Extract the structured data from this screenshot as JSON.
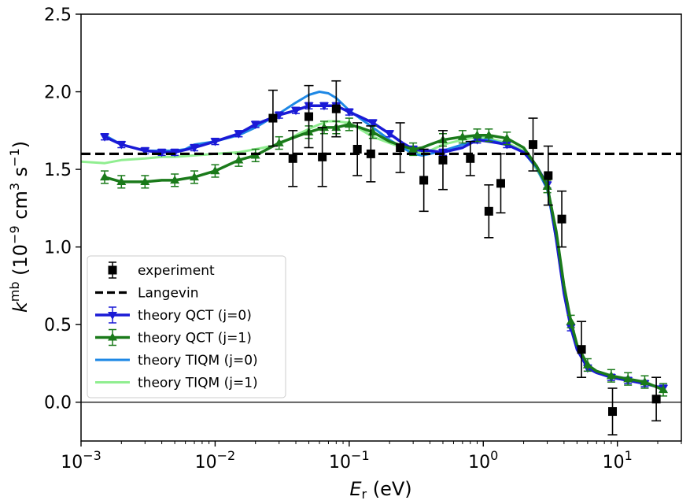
{
  "chart_data": {
    "type": "line",
    "title": "",
    "xscale": "log",
    "xlim": [
      0.001,
      30
    ],
    "ylim": [
      -0.25,
      2.5
    ],
    "xlabel": {
      "main": "E",
      "sub": "r",
      "rest": " (eV)"
    },
    "ylabel": {
      "main": "k",
      "sup": "mb",
      "rest1": " (10",
      "exp1": "−9",
      "rest2": " cm",
      "exp2": "3",
      "rest3": " s",
      "exp3": "−1",
      "rest4": ")"
    },
    "x_ticks": [
      {
        "value": 0.001,
        "base": "10",
        "exp": "−3"
      },
      {
        "value": 0.01,
        "base": "10",
        "exp": "−2"
      },
      {
        "value": 0.1,
        "base": "10",
        "exp": "−1"
      },
      {
        "value": 1,
        "base": "10",
        "exp": "0"
      },
      {
        "value": 10,
        "base": "10",
        "exp": "1"
      }
    ],
    "y_ticks": [
      {
        "value": 0.0,
        "label": "0.0"
      },
      {
        "value": 0.5,
        "label": "0.5"
      },
      {
        "value": 1.0,
        "label": "1.0"
      },
      {
        "value": 1.5,
        "label": "1.5"
      },
      {
        "value": 2.0,
        "label": "2.0"
      },
      {
        "value": 2.5,
        "label": "2.5"
      }
    ],
    "hline_zero": 0.0,
    "langevin": {
      "name": "Langevin",
      "value": 1.6,
      "color": "#000000"
    },
    "experiment": {
      "name": "experiment",
      "color": "#000000",
      "points": [
        {
          "x": 0.027,
          "y": 1.83,
          "err": 0.18
        },
        {
          "x": 0.038,
          "y": 1.57,
          "err": 0.18
        },
        {
          "x": 0.05,
          "y": 1.84,
          "err": 0.2
        },
        {
          "x": 0.063,
          "y": 1.58,
          "err": 0.19
        },
        {
          "x": 0.08,
          "y": 1.89,
          "err": 0.18
        },
        {
          "x": 0.115,
          "y": 1.63,
          "err": 0.17
        },
        {
          "x": 0.145,
          "y": 1.6,
          "err": 0.18
        },
        {
          "x": 0.24,
          "y": 1.64,
          "err": 0.16
        },
        {
          "x": 0.36,
          "y": 1.43,
          "err": 0.2
        },
        {
          "x": 0.5,
          "y": 1.56,
          "err": 0.19
        },
        {
          "x": 0.8,
          "y": 1.57,
          "err": 0.11
        },
        {
          "x": 1.1,
          "y": 1.23,
          "err": 0.17
        },
        {
          "x": 1.35,
          "y": 1.41,
          "err": 0.19
        },
        {
          "x": 2.35,
          "y": 1.66,
          "err": 0.17
        },
        {
          "x": 3.05,
          "y": 1.46,
          "err": 0.19
        },
        {
          "x": 3.85,
          "y": 1.18,
          "err": 0.18
        },
        {
          "x": 5.4,
          "y": 0.34,
          "err": 0.18
        },
        {
          "x": 9.2,
          "y": -0.06,
          "err": 0.15
        },
        {
          "x": 19.5,
          "y": 0.02,
          "err": 0.14
        }
      ]
    },
    "series": [
      {
        "name": "theory TIQM (j=1)",
        "color": "#90ee90",
        "marker": "none",
        "x": [
          0.001,
          0.0015,
          0.002,
          0.003,
          0.004,
          0.005,
          0.007,
          0.01,
          0.015,
          0.02,
          0.03,
          0.04,
          0.05,
          0.06,
          0.07,
          0.08,
          0.1,
          0.12,
          0.15,
          0.2,
          0.25,
          0.3,
          0.35,
          0.4,
          0.5,
          0.7,
          0.9,
          1.1,
          1.5,
          2.0,
          2.5,
          3.0,
          3.5,
          4.0,
          4.5,
          5.0,
          6.0,
          7.0,
          9.0,
          12.0,
          16.0,
          22.0
        ],
        "y": [
          1.55,
          1.54,
          1.56,
          1.57,
          1.58,
          1.58,
          1.59,
          1.6,
          1.61,
          1.63,
          1.66,
          1.72,
          1.76,
          1.79,
          1.81,
          1.81,
          1.8,
          1.76,
          1.71,
          1.67,
          1.64,
          1.62,
          1.6,
          1.62,
          1.66,
          1.69,
          1.71,
          1.7,
          1.67,
          1.62,
          1.5,
          1.38,
          1.1,
          0.75,
          0.5,
          0.36,
          0.24,
          0.19,
          0.16,
          0.14,
          0.12,
          0.09
        ]
      },
      {
        "name": "theory TIQM (j=0)",
        "color": "#1e88e5",
        "marker": "none",
        "x": [
          0.0015,
          0.002,
          0.003,
          0.004,
          0.005,
          0.006,
          0.007,
          0.01,
          0.015,
          0.02,
          0.03,
          0.04,
          0.05,
          0.06,
          0.07,
          0.08,
          0.1,
          0.12,
          0.15,
          0.2,
          0.25,
          0.3,
          0.35,
          0.4,
          0.5,
          0.7,
          0.9,
          1.1,
          1.5,
          2.0,
          2.5,
          3.0,
          3.5,
          4.0,
          4.5,
          5.0,
          6.0,
          7.0,
          9.0,
          12.0,
          16.0,
          22.0
        ],
        "y": [
          1.72,
          1.66,
          1.62,
          1.62,
          1.62,
          1.63,
          1.66,
          1.68,
          1.72,
          1.77,
          1.86,
          1.93,
          1.98,
          2.0,
          1.99,
          1.96,
          1.88,
          1.83,
          1.77,
          1.69,
          1.64,
          1.6,
          1.59,
          1.6,
          1.62,
          1.66,
          1.69,
          1.69,
          1.66,
          1.61,
          1.51,
          1.37,
          1.05,
          0.7,
          0.48,
          0.34,
          0.23,
          0.19,
          0.16,
          0.14,
          0.12,
          0.09
        ]
      },
      {
        "name": "theory QCT (j=0)",
        "color": "#1a1ad6",
        "marker": "triangle-down",
        "x": [
          0.0015,
          0.002,
          0.003,
          0.004,
          0.005,
          0.007,
          0.01,
          0.015,
          0.02,
          0.03,
          0.04,
          0.05,
          0.065,
          0.08,
          0.1,
          0.12,
          0.15,
          0.2,
          0.25,
          0.3,
          0.35,
          0.4,
          0.5,
          0.7,
          0.9,
          1.1,
          1.5,
          2.0,
          2.5,
          3.0,
          3.5,
          4.0,
          4.5,
          5.0,
          6.0,
          7.0,
          9.0,
          12.0,
          16.0,
          22.0
        ],
        "y": [
          1.71,
          1.66,
          1.62,
          1.61,
          1.61,
          1.64,
          1.68,
          1.73,
          1.79,
          1.85,
          1.88,
          1.91,
          1.91,
          1.91,
          1.87,
          1.84,
          1.8,
          1.73,
          1.67,
          1.63,
          1.62,
          1.62,
          1.61,
          1.64,
          1.69,
          1.68,
          1.66,
          1.61,
          1.52,
          1.4,
          1.05,
          0.7,
          0.48,
          0.34,
          0.22,
          0.19,
          0.16,
          0.14,
          0.12,
          0.09
        ],
        "err": 0.02,
        "marker_x": [
          0.0015,
          0.002,
          0.003,
          0.004,
          0.005,
          0.007,
          0.01,
          0.015,
          0.02,
          0.03,
          0.04,
          0.05,
          0.065,
          0.08,
          0.1,
          0.15,
          0.2,
          0.3,
          0.5,
          0.9,
          1.5,
          3.0,
          4.5,
          6.0,
          9.0,
          12.0,
          16.0,
          22.0
        ]
      },
      {
        "name": "theory QCT (j=1)",
        "color": "#1a7a1a",
        "marker": "triangle-up",
        "x": [
          0.0015,
          0.002,
          0.003,
          0.004,
          0.005,
          0.007,
          0.01,
          0.015,
          0.02,
          0.03,
          0.04,
          0.05,
          0.065,
          0.08,
          0.1,
          0.12,
          0.15,
          0.2,
          0.25,
          0.3,
          0.35,
          0.4,
          0.5,
          0.7,
          0.9,
          1.1,
          1.5,
          2.0,
          2.5,
          3.0,
          3.5,
          4.0,
          4.5,
          5.0,
          6.0,
          7.0,
          9.0,
          12.0,
          16.0,
          22.0
        ],
        "y": [
          1.45,
          1.42,
          1.42,
          1.43,
          1.43,
          1.45,
          1.49,
          1.56,
          1.59,
          1.67,
          1.71,
          1.74,
          1.77,
          1.77,
          1.79,
          1.77,
          1.74,
          1.68,
          1.65,
          1.63,
          1.64,
          1.66,
          1.69,
          1.71,
          1.72,
          1.72,
          1.7,
          1.64,
          1.52,
          1.39,
          1.1,
          0.75,
          0.52,
          0.37,
          0.24,
          0.2,
          0.17,
          0.15,
          0.13,
          0.08
        ],
        "err": 0.04,
        "marker_x": [
          0.0015,
          0.002,
          0.003,
          0.005,
          0.007,
          0.01,
          0.015,
          0.02,
          0.03,
          0.05,
          0.065,
          0.08,
          0.1,
          0.15,
          0.3,
          0.5,
          0.7,
          0.9,
          1.1,
          1.5,
          3.0,
          4.5,
          6.0,
          9.0,
          12.0,
          16.0,
          22.0
        ]
      }
    ],
    "legend": {
      "position": "lower-left",
      "entries": [
        {
          "label": "experiment",
          "style": "errbar-square",
          "color": "#000000"
        },
        {
          "label": "Langevin",
          "style": "dashed",
          "color": "#000000"
        },
        {
          "label": "theory QCT (j=0)",
          "style": "errbar-triangle-down",
          "color": "#1a1ad6"
        },
        {
          "label": "theory QCT (j=1)",
          "style": "errbar-triangle-up",
          "color": "#1a7a1a"
        },
        {
          "label": "theory TIQM (j=0)",
          "style": "line",
          "color": "#1e88e5"
        },
        {
          "label": "theory TIQM (j=1)",
          "style": "line",
          "color": "#90ee90"
        }
      ]
    }
  }
}
